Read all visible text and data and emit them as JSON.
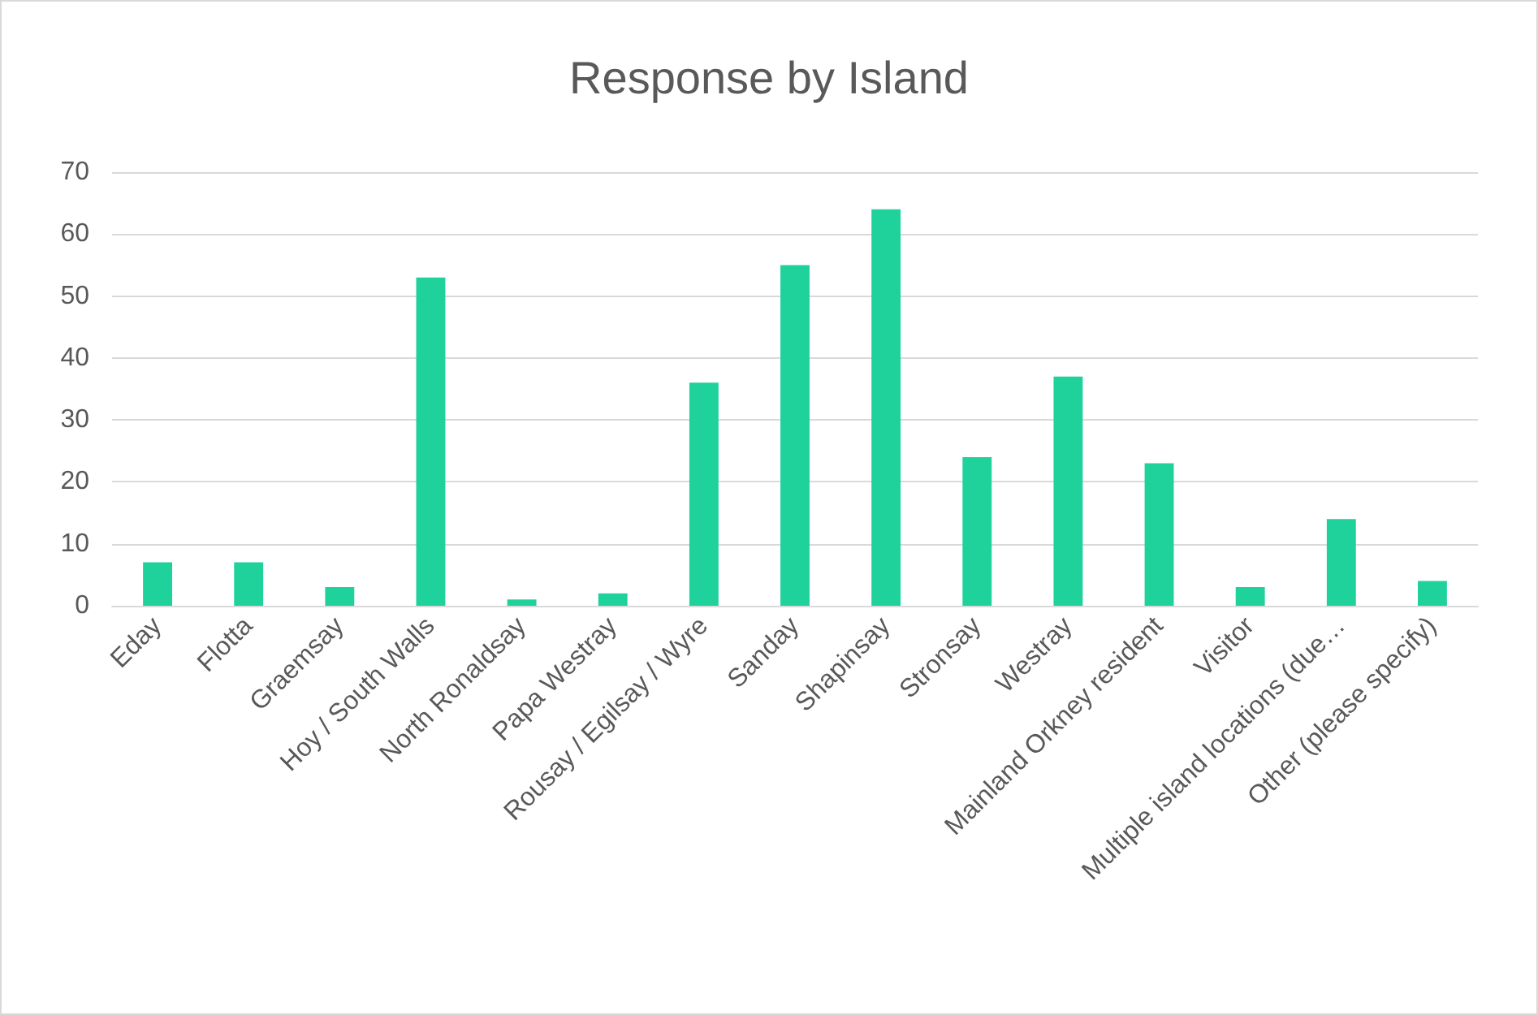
{
  "chart_data": {
    "type": "bar",
    "title": "Response by Island",
    "categories": [
      "Eday",
      "Flotta",
      "Graemsay",
      "Hoy / South Walls",
      "North Ronaldsay",
      "Papa Westray",
      "Rousay / Egilsay / Wyre",
      "Sanday",
      "Shapinsay",
      "Stronsay",
      "Westray",
      "Mainland Orkney resident",
      "Visitor",
      "Multiple island locations (due…",
      "Other (please specify)"
    ],
    "values": [
      7,
      7,
      3,
      53,
      1,
      2,
      36,
      55,
      64,
      24,
      37,
      23,
      3,
      14,
      4
    ],
    "color": "#1fd19b",
    "ylim": [
      0,
      70
    ],
    "yticks": [
      0,
      10,
      20,
      30,
      40,
      50,
      60,
      70
    ],
    "grid": "y"
  }
}
